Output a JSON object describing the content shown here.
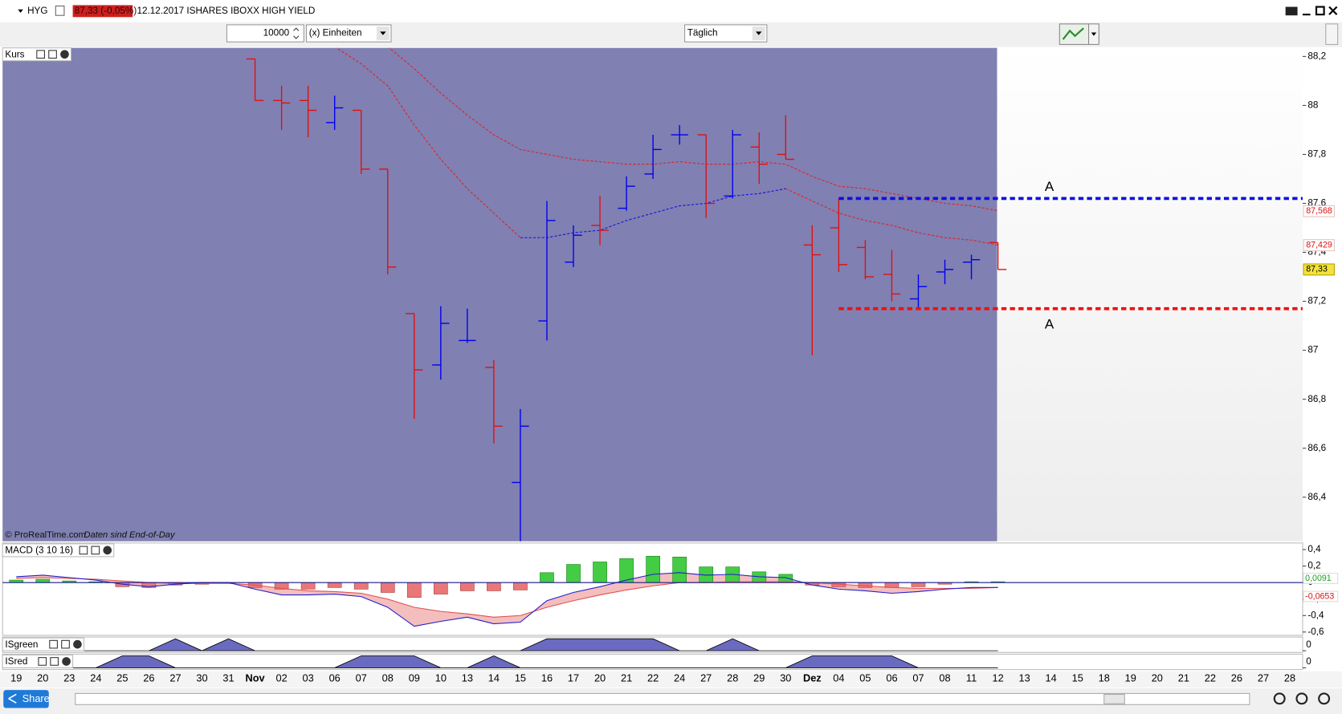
{
  "header": {
    "symbol": "HYG",
    "quote": "87,33 (-0,05%)",
    "title": "12.12.2017 ISHARES IBOXX  HIGH YIELD"
  },
  "toolbar": {
    "quantity": "10000",
    "unit": "(x) Einheiten",
    "period": "Täglich"
  },
  "footer": {
    "copyright": "© ProRealTime.com",
    "note": "Daten sind End-of-Day",
    "share": "Share"
  },
  "chart_data": [
    {
      "type": "ohlc",
      "title": "Kurs",
      "categories": [
        "19",
        "20",
        "23",
        "24",
        "25",
        "26",
        "27",
        "30",
        "31",
        "Nov",
        "02",
        "03",
        "06",
        "07",
        "08",
        "09",
        "10",
        "13",
        "14",
        "15",
        "16",
        "17",
        "20",
        "21",
        "22",
        "24",
        "27",
        "28",
        "29",
        "30",
        "Dez",
        "04",
        "05",
        "06",
        "07",
        "08",
        "11",
        "12",
        "13",
        "14",
        "15",
        "18",
        "19",
        "20",
        "21",
        "22",
        "26",
        "27",
        "28"
      ],
      "open": [
        null,
        null,
        null,
        null,
        null,
        null,
        null,
        null,
        null,
        88.19,
        88.02,
        88.02,
        87.93,
        87.98,
        87.74,
        87.15,
        86.94,
        87.04,
        86.93,
        86.46,
        87.12,
        87.36,
        87.51,
        87.58,
        87.72,
        87.88,
        87.88,
        87.63,
        87.83,
        87.8,
        87.43,
        87.5,
        87.42,
        87.31,
        87.21,
        87.32,
        87.36,
        87.44,
        null,
        null,
        null,
        null,
        null,
        null,
        null,
        null,
        null,
        null,
        null
      ],
      "high": [
        null,
        null,
        null,
        null,
        null,
        null,
        null,
        null,
        null,
        88.19,
        88.08,
        88.08,
        88.04,
        87.98,
        87.74,
        87.15,
        87.18,
        87.17,
        86.96,
        86.76,
        87.61,
        87.51,
        87.63,
        87.71,
        87.88,
        87.92,
        87.88,
        87.9,
        87.89,
        87.96,
        87.51,
        87.62,
        87.45,
        87.41,
        87.31,
        87.37,
        87.39,
        87.44,
        null,
        null,
        null,
        null,
        null,
        null,
        null,
        null,
        null,
        null,
        null
      ],
      "low": [
        null,
        null,
        null,
        null,
        null,
        null,
        null,
        null,
        null,
        88.02,
        87.9,
        87.87,
        87.9,
        87.72,
        87.31,
        86.72,
        86.88,
        87.03,
        86.62,
        86.22,
        87.04,
        87.34,
        87.43,
        87.57,
        87.7,
        87.84,
        87.54,
        87.62,
        87.68,
        87.78,
        86.98,
        87.32,
        87.29,
        87.2,
        87.17,
        87.27,
        87.29,
        87.33,
        null,
        null,
        null,
        null,
        null,
        null,
        null,
        null,
        null,
        null,
        null
      ],
      "close": [
        null,
        null,
        null,
        null,
        null,
        null,
        null,
        null,
        null,
        88.02,
        88.01,
        87.98,
        87.99,
        87.74,
        87.34,
        86.92,
        87.11,
        87.04,
        86.69,
        86.69,
        87.53,
        87.47,
        87.49,
        87.67,
        87.82,
        87.88,
        87.6,
        87.88,
        87.76,
        87.78,
        87.39,
        87.35,
        87.3,
        87.23,
        87.26,
        87.33,
        87.37,
        87.33,
        null,
        null,
        null,
        null,
        null,
        null,
        null,
        null,
        null,
        null,
        null
      ],
      "up_color": "#0000ee",
      "down_color": "#e01010",
      "lines": [
        {
          "color": "#e02020",
          "values": [
            null,
            null,
            null,
            null,
            null,
            null,
            null,
            null,
            null,
            null,
            null,
            null,
            null,
            null,
            88.24,
            88.15,
            88.05,
            87.96,
            87.88,
            87.82,
            87.8,
            87.78,
            87.77,
            87.76,
            87.76,
            87.77,
            87.76,
            87.76,
            87.77,
            87.76,
            87.71,
            87.67,
            87.66,
            87.64,
            87.62,
            87.6,
            87.59,
            87.57,
            null,
            null,
            null,
            null,
            null,
            null,
            null,
            null,
            null,
            null,
            null
          ]
        },
        {
          "color": "#e02020",
          "values": [
            null,
            null,
            null,
            null,
            null,
            null,
            null,
            null,
            null,
            null,
            null,
            null,
            88.24,
            88.17,
            88.08,
            87.92,
            87.78,
            87.66,
            87.56,
            87.46,
            null,
            null,
            null,
            null,
            null,
            null,
            null,
            null,
            null,
            null,
            null,
            null,
            null,
            null,
            null,
            null,
            null,
            null,
            null,
            null,
            null,
            null,
            null,
            null,
            null,
            null,
            null,
            null,
            null
          ]
        },
        {
          "color": "#1010e0",
          "values": [
            null,
            null,
            null,
            null,
            null,
            null,
            null,
            null,
            null,
            null,
            null,
            null,
            null,
            null,
            null,
            null,
            null,
            null,
            null,
            87.46,
            87.46,
            87.48,
            87.49,
            87.53,
            87.56,
            87.59,
            87.6,
            87.63,
            87.64,
            87.66,
            null,
            null,
            null,
            null,
            null,
            null,
            null,
            null,
            null,
            null,
            null,
            null,
            null,
            null,
            null,
            null,
            null,
            null,
            null
          ]
        },
        {
          "color": "#e02020",
          "values": [
            null,
            null,
            null,
            null,
            null,
            null,
            null,
            null,
            null,
            null,
            null,
            null,
            null,
            null,
            null,
            null,
            null,
            null,
            null,
            null,
            null,
            null,
            null,
            null,
            null,
            null,
            null,
            null,
            null,
            87.66,
            87.61,
            87.56,
            87.53,
            87.51,
            87.48,
            87.46,
            87.45,
            87.43,
            null,
            null,
            null,
            null,
            null,
            null,
            null,
            null,
            null,
            null,
            null
          ]
        }
      ],
      "levels": [
        {
          "value": 87.62,
          "label": "A",
          "color": "#1010e0"
        },
        {
          "value": 87.17,
          "label": "A",
          "color": "#ee1010"
        }
      ],
      "markers": [
        {
          "value": 87.568,
          "label": "87,568",
          "color": "#e01010",
          "background": "#ffffff"
        },
        {
          "value": 87.429,
          "label": "87,429",
          "color": "#e01010",
          "background": "#ffffff"
        },
        {
          "value": 87.33,
          "label": "87,33",
          "color": "#000000",
          "background": "#f2e23a"
        }
      ],
      "ylim": [
        86.22,
        88.235
      ],
      "yticks": [
        {
          "value": 88.2,
          "label": "88,2"
        },
        88,
        {
          "value": 87.8,
          "label": "87,8"
        },
        {
          "value": 87.6,
          "label": "87,6"
        },
        {
          "value": 87.4,
          "label": "87,4"
        },
        {
          "value": 87.2,
          "label": "87,2"
        },
        87,
        {
          "value": 86.8,
          "label": "86,8"
        },
        {
          "value": 86.6,
          "label": "86,6"
        },
        {
          "value": 86.4,
          "label": "86,4"
        }
      ]
    },
    {
      "type": "macd",
      "title": "MACD (3 10 16)",
      "histogram": [
        0.03,
        0.04,
        0.02,
        0.01,
        -0.05,
        -0.06,
        -0.03,
        -0.02,
        -0.01,
        -0.06,
        -0.08,
        -0.08,
        -0.06,
        -0.08,
        -0.12,
        -0.18,
        -0.14,
        -0.1,
        -0.1,
        -0.09,
        0.12,
        0.22,
        0.25,
        0.29,
        0.32,
        0.31,
        0.19,
        0.19,
        0.13,
        0.1,
        -0.03,
        -0.05,
        -0.06,
        -0.06,
        -0.05,
        -0.02,
        0.01,
        0.01,
        null,
        null,
        null,
        null,
        null,
        null,
        null,
        null,
        null,
        null,
        null
      ],
      "positive_color": "#44cc44",
      "negative_color": "#e87878",
      "macd": {
        "color": "#2020d0",
        "values": [
          0.07,
          0.09,
          0.06,
          0.03,
          -0.02,
          -0.05,
          -0.02,
          0,
          0,
          -0.08,
          -0.15,
          -0.15,
          -0.14,
          -0.17,
          -0.3,
          -0.53,
          -0.47,
          -0.42,
          -0.5,
          -0.48,
          -0.22,
          -0.12,
          -0.05,
          0.03,
          0.1,
          0.12,
          0.09,
          0.1,
          0.07,
          0.06,
          -0.03,
          -0.08,
          -0.1,
          -0.13,
          -0.11,
          -0.08,
          -0.06,
          -0.06,
          null,
          null,
          null,
          null,
          null,
          null,
          null,
          null,
          null,
          null,
          null
        ]
      },
      "signal": {
        "color": "#e05050",
        "values": [
          0.05,
          0.06,
          0.05,
          0.04,
          0.02,
          0,
          -0.01,
          -0.01,
          -0.01,
          -0.03,
          -0.07,
          -0.1,
          -0.11,
          -0.13,
          -0.2,
          -0.3,
          -0.35,
          -0.38,
          -0.42,
          -0.4,
          -0.3,
          -0.22,
          -0.15,
          -0.09,
          -0.04,
          0,
          0,
          0.01,
          0.01,
          0.01,
          0,
          -0.02,
          -0.04,
          -0.06,
          -0.07,
          -0.07,
          -0.07,
          -0.06,
          null,
          null,
          null,
          null,
          null,
          null,
          null,
          null,
          null,
          null,
          null
        ]
      },
      "markers": [
        {
          "value": 0.0091,
          "label": "0,0091",
          "color": "#20a020",
          "background": "#ffffff"
        },
        {
          "value": -0.0653,
          "label": "-0,0653",
          "color": "#e01010",
          "background": "#ffffff"
        }
      ],
      "ylim": [
        -0.64,
        0.48
      ],
      "yticks": [
        {
          "value": 0.4,
          "label": "0,4"
        },
        {
          "value": 0.2,
          "label": "0,2"
        },
        0,
        {
          "value": -0.2,
          "label": "-0,2"
        },
        {
          "value": -0.4,
          "label": "-0,4"
        },
        {
          "value": -0.6,
          "label": "-0,6"
        }
      ]
    },
    {
      "type": "signal",
      "title": "ISgreen",
      "color": "#6a6ac0",
      "values": [
        0,
        0,
        0,
        0,
        0,
        0,
        1,
        0,
        1,
        0,
        0,
        0,
        0,
        0,
        0,
        0,
        0,
        0,
        0,
        0,
        1,
        1,
        1,
        1,
        1,
        0,
        0,
        1,
        0,
        0,
        0,
        0,
        0,
        0,
        0,
        0,
        0,
        0,
        null,
        null,
        null,
        null,
        null,
        null,
        null,
        null,
        null,
        null,
        null
      ],
      "ylim": [
        0,
        1
      ],
      "yticks": [
        0
      ]
    },
    {
      "type": "signal",
      "title": "ISred",
      "color": "#6a6ac0",
      "values": [
        0,
        0,
        0,
        0,
        1,
        1,
        0,
        0,
        0,
        0,
        0,
        0,
        0,
        1,
        1,
        1,
        0,
        0,
        1,
        0,
        0,
        0,
        0,
        0,
        0,
        0,
        0,
        0,
        0,
        0,
        1,
        1,
        1,
        1,
        0,
        0,
        0,
        0,
        null,
        null,
        null,
        null,
        null,
        null,
        null,
        null,
        null,
        null,
        null
      ],
      "ylim": [
        0,
        1
      ],
      "yticks": [
        0
      ]
    }
  ]
}
